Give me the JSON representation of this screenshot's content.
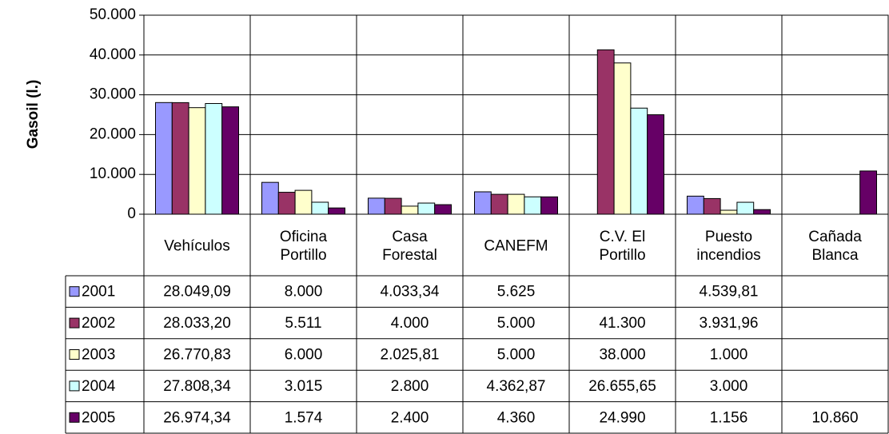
{
  "chart_data": {
    "type": "bar",
    "y_label": "Gasoil (l.)",
    "categories": [
      "Vehículos",
      "Oficina\nPortillo",
      "Casa\nForestal",
      "CANEFM",
      "C.V. El\nPortillo",
      "Puesto\nincendios",
      "Cañada\nBlanca"
    ],
    "series": [
      {
        "name": "2001",
        "color": "#9999ff",
        "values": [
          28049.09,
          8000,
          4033.34,
          5625,
          null,
          4539.81,
          null
        ],
        "value_labels": [
          "28.049,09",
          "8.000",
          "4.033,34",
          "5.625",
          null,
          "4.539,81",
          null
        ]
      },
      {
        "name": "2002",
        "color": "#993366",
        "values": [
          28033.2,
          5511,
          4000,
          5000,
          41300,
          3931.96,
          null
        ],
        "value_labels": [
          "28.033,20",
          "5.511",
          "4.000",
          "5.000",
          "41.300",
          "3.931,96",
          null
        ]
      },
      {
        "name": "2003",
        "color": "#ffffcc",
        "values": [
          26770.83,
          6000,
          2025.81,
          5000,
          38000,
          1000,
          null
        ],
        "value_labels": [
          "26.770,83",
          "6.000",
          "2.025,81",
          "5.000",
          "38.000",
          "1.000",
          null
        ]
      },
      {
        "name": "2004",
        "color": "#ccffff",
        "values": [
          27808.34,
          3015,
          2800,
          4362.87,
          26655.65,
          3000,
          null
        ],
        "value_labels": [
          "27.808,34",
          "3.015",
          "2.800",
          "4.362,87",
          "26.655,65",
          "3.000",
          null
        ]
      },
      {
        "name": "2005",
        "color": "#660066",
        "values": [
          26974.34,
          1574,
          2400,
          4360,
          24990,
          1156,
          10860
        ],
        "value_labels": [
          "26.974,34",
          "1.574",
          "2.400",
          "4.360",
          "24.990",
          "1.156",
          "10.860"
        ]
      }
    ],
    "ylim": [
      0,
      50000
    ],
    "yticks": [
      0,
      {
        "value": 10000,
        "label": "10.000"
      },
      {
        "value": 20000,
        "label": "20.000"
      },
      {
        "value": 30000,
        "label": "30.000"
      },
      {
        "value": 40000,
        "label": "40.000"
      },
      {
        "value": 50000,
        "label": "50.000"
      }
    ],
    "grid": true
  }
}
